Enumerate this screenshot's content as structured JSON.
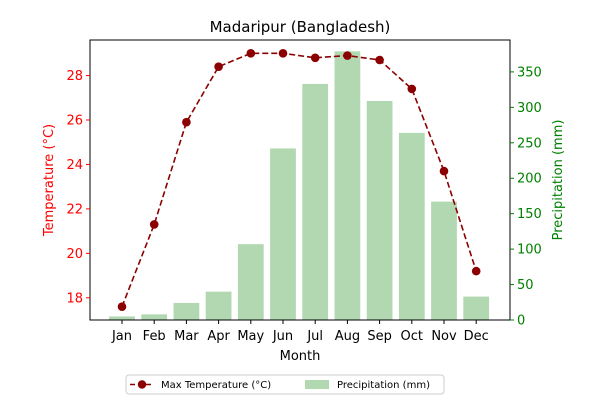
{
  "chart_data": {
    "type": "bar+line",
    "title": "Madaripur (Bangladesh)",
    "xlabel": "Month",
    "categories": [
      "Jan",
      "Feb",
      "Mar",
      "Apr",
      "May",
      "Jun",
      "Jul",
      "Aug",
      "Sep",
      "Oct",
      "Nov",
      "Dec"
    ],
    "left_axis": {
      "label": "Temperature (°C)",
      "ylim": [
        17.0,
        29.6
      ],
      "ticks": [
        18,
        20,
        22,
        24,
        26,
        28
      ],
      "color": "#ff0000"
    },
    "right_axis": {
      "label": "Precipitation (mm)",
      "ylim": [
        0,
        395
      ],
      "ticks": [
        0,
        50,
        100,
        150,
        200,
        250,
        300,
        350
      ],
      "color": "#008000"
    },
    "series": [
      {
        "name": "Max Temperature (°C)",
        "type": "line",
        "axis": "left",
        "color": "#8b0000",
        "style": "dashed",
        "marker": "circle",
        "values": [
          17.6,
          21.3,
          25.9,
          28.4,
          29.0,
          29.0,
          28.8,
          28.9,
          28.7,
          27.4,
          23.7,
          19.2
        ]
      },
      {
        "name": "Precipitation (mm)",
        "type": "bar",
        "axis": "right",
        "color": "#b2d8b2",
        "values": [
          5,
          8,
          24,
          40,
          107,
          242,
          333,
          379,
          309,
          264,
          167,
          33
        ]
      }
    ],
    "legend": {
      "placement": "bottom-center"
    },
    "grid": false
  }
}
